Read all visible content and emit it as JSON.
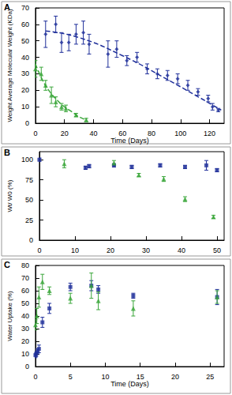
{
  "chart_data": [
    {
      "type": "scatter",
      "panel_label": "A",
      "x_label": "Time (Days)",
      "y_label": "Weight Average Molecular Weight (KDa)",
      "xlim": [
        0,
        130
      ],
      "xticks": [
        0,
        20,
        40,
        60,
        80,
        100,
        120
      ],
      "ylim": [
        0,
        70
      ],
      "yticks": [
        0,
        10,
        20,
        30,
        40,
        50,
        60,
        70
      ],
      "grid": false,
      "series": [
        {
          "type": "line",
          "color": "#1f2f9a",
          "line_style": "dashed",
          "marker": "none",
          "x": [
            7,
            30,
            60,
            90,
            128
          ],
          "values": [
            56,
            52,
            41,
            27,
            8
          ]
        },
        {
          "type": "line",
          "color": "#3aa63a",
          "line_style": "dashed",
          "marker": "none",
          "x": [
            0,
            5,
            10,
            15,
            20,
            25,
            30,
            35
          ],
          "values": [
            36,
            26,
            19,
            14,
            10,
            7,
            4,
            2
          ]
        },
        {
          "type": "scatter",
          "color": "#1f2f9a",
          "marker": "diamond",
          "x": [
            7,
            14,
            18,
            23,
            28,
            33,
            37,
            50,
            56,
            63,
            70,
            77,
            84,
            91,
            98,
            105,
            112,
            119,
            122,
            126
          ],
          "values": [
            54,
            60,
            49,
            49,
            54,
            55,
            48,
            42,
            45,
            38,
            40,
            33,
            30,
            29,
            27,
            23,
            19,
            15,
            10,
            8
          ],
          "errors": [
            8,
            5,
            6,
            5,
            6,
            7,
            6,
            8,
            5,
            3,
            3,
            3,
            3,
            3,
            3,
            3,
            2,
            2,
            2,
            1
          ]
        },
        {
          "type": "scatter",
          "color": "#3aa63a",
          "marker": "triangle",
          "x": [
            0,
            4,
            7,
            11,
            14,
            18,
            21,
            28,
            35
          ],
          "values": [
            33,
            30,
            23,
            17,
            13,
            10,
            9,
            5,
            2
          ],
          "errors": [
            5,
            4,
            3,
            5,
            3,
            2,
            2,
            1,
            1
          ]
        }
      ]
    },
    {
      "type": "scatter",
      "panel_label": "B",
      "y_label": "Wt/ W0 (%)",
      "xlim": [
        0,
        52
      ],
      "xticks": [
        0,
        10,
        20,
        30,
        40,
        50
      ],
      "ylim": [
        0,
        110
      ],
      "yticks": [
        0,
        25,
        50,
        75,
        100
      ],
      "grid": false,
      "series": [
        {
          "type": "scatter",
          "color": "#1f2f9a",
          "marker": "square",
          "x": [
            0,
            13,
            14,
            21,
            26,
            34,
            41,
            47,
            50
          ],
          "values": [
            100,
            90,
            92,
            93,
            91,
            93,
            91,
            93,
            87
          ],
          "errors": [
            2,
            2,
            2,
            2,
            2,
            2,
            2,
            6,
            2
          ]
        },
        {
          "type": "scatter",
          "color": "#3aa63a",
          "marker": "triangle",
          "x": [
            7,
            21,
            28,
            35,
            41,
            49
          ],
          "values": [
            95,
            96,
            81,
            76,
            51,
            29
          ],
          "errors": [
            5,
            3,
            2,
            3,
            3,
            2
          ]
        }
      ]
    },
    {
      "type": "scatter",
      "panel_label": "C",
      "x_label": "Time (Days)",
      "y_label": "Water Uptake (%)",
      "xlim": [
        0,
        27
      ],
      "xticks": [
        0,
        5,
        10,
        15,
        20,
        25
      ],
      "ylim": [
        0,
        80
      ],
      "yticks": [
        0,
        10,
        20,
        30,
        40,
        50,
        60,
        70,
        80
      ],
      "grid": false,
      "series": [
        {
          "type": "scatter",
          "color": "#1f2f9a",
          "marker": "square",
          "x": [
            0,
            0.1,
            0.3,
            0.5,
            1,
            2,
            5,
            8,
            9,
            14,
            26
          ],
          "values": [
            9,
            10,
            12,
            14,
            35,
            46,
            63,
            64,
            61,
            56,
            55
          ],
          "errors": [
            2,
            2,
            2,
            3,
            4,
            4,
            3,
            4,
            3,
            2,
            6
          ]
        },
        {
          "type": "scatter",
          "color": "#3aa63a",
          "marker": "triangle",
          "x": [
            0,
            0.2,
            0.5,
            1,
            2,
            5,
            8,
            9,
            14,
            26
          ],
          "values": [
            33,
            40,
            55,
            67,
            60,
            54,
            64,
            52,
            46,
            55
          ],
          "errors": [
            4,
            6,
            8,
            6,
            3,
            4,
            10,
            7,
            6,
            5
          ]
        }
      ]
    }
  ]
}
